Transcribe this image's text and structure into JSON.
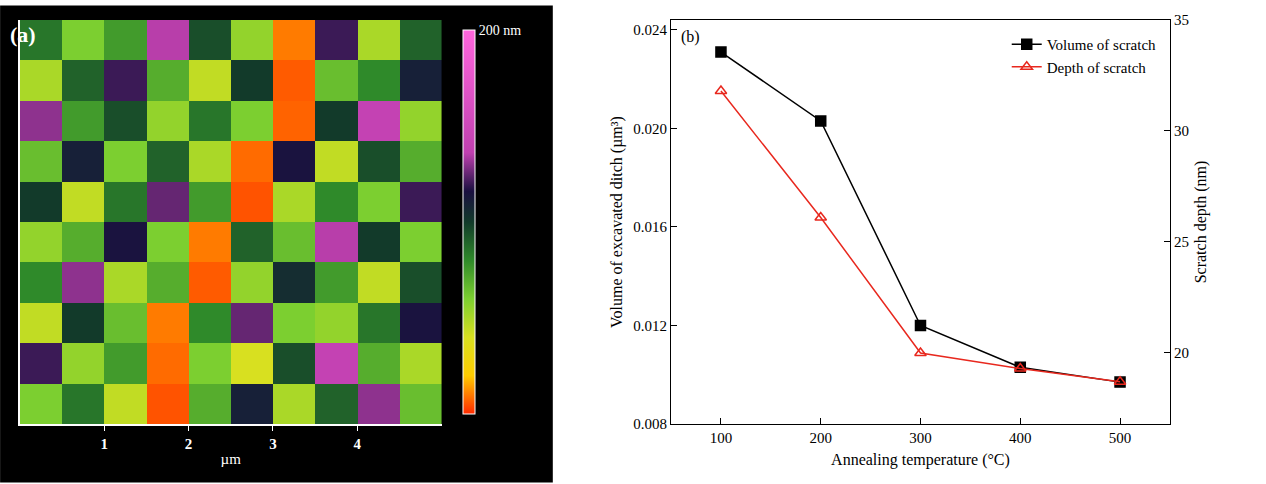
{
  "chart_data": [
    {
      "type": "heatmap",
      "title": "(a)",
      "x": [
        0.25,
        0.75,
        1.25,
        1.75,
        2.25,
        2.75,
        3.25,
        3.75,
        4.25,
        4.75
      ],
      "y": [
        0.25,
        0.75,
        1.25,
        1.75,
        2.25,
        2.75,
        3.25,
        3.75,
        4.25,
        4.75
      ],
      "cells": [
        [
          60,
          85,
          45,
          5,
          70,
          110,
          50,
          90,
          130,
          65
        ],
        [
          120,
          55,
          75,
          8,
          60,
          40,
          95,
          140,
          70,
          50
        ],
        [
          45,
          100,
          65,
          10,
          80,
          125,
          60,
          55,
          85,
          115
        ],
        [
          80,
          130,
          50,
          70,
          6,
          55,
          105,
          75,
          45,
          95
        ],
        [
          55,
          70,
          115,
          60,
          10,
          90,
          65,
          135,
          100,
          60
        ],
        [
          100,
          45,
          85,
          125,
          75,
          5,
          50,
          80,
          60,
          120
        ],
        [
          65,
          110,
          60,
          90,
          50,
          8,
          115,
          45,
          95,
          70
        ],
        [
          130,
          75,
          95,
          55,
          85,
          60,
          7,
          100,
          140,
          55
        ],
        [
          50,
          90,
          120,
          70,
          45,
          100,
          6,
          65,
          80,
          110
        ],
        [
          85,
          60,
          75,
          135,
          95,
          55,
          10,
          120,
          50,
          90
        ]
      ],
      "x_label": "µm",
      "xlim": [
        0,
        5
      ],
      "xticks": [
        1,
        2,
        3,
        4
      ],
      "ylim": [
        0,
        5
      ],
      "tick_labels": "x",
      "zlim": [
        0,
        200
      ],
      "zticks": [
        {
          "value": 200,
          "label": "200 nm"
        }
      ]
    },
    {
      "type": "line",
      "title": "(b)",
      "x": [
        100,
        200,
        300,
        400,
        500
      ],
      "x_label": "Annealing temperature (°C)",
      "y_label": "Volume of excavated ditch (µm³)",
      "y2_label": "Scratch depth (nm)",
      "xlim": [
        50,
        550
      ],
      "xticks": [
        100,
        200,
        300,
        400,
        500
      ],
      "ylim": [
        0.008,
        0.0244
      ],
      "yticks": [
        0.008,
        0.012,
        0.016,
        {
          "value": 0.02,
          "label": "0.020"
        },
        0.024
      ],
      "y2lim": [
        16.8,
        35
      ],
      "y2ticks": [
        20,
        25,
        30,
        35
      ],
      "grid": false,
      "legend": "top right",
      "series": [
        {
          "name": "Volume of scratch",
          "color": "#000000",
          "marker": "square",
          "line_style": "solid",
          "values": [
            0.0231,
            0.0203,
            0.012,
            0.0103,
            0.0097
          ]
        },
        {
          "name": "Depth of scratch",
          "color": "#e8281e",
          "marker": "triangle-up-open",
          "line_style": "solid",
          "axis": "y2",
          "values": [
            31.8,
            26.1,
            20.0,
            19.3,
            18.7
          ]
        }
      ]
    }
  ]
}
